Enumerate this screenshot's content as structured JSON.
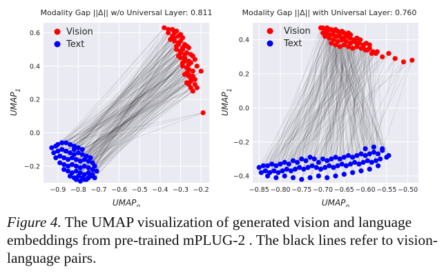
{
  "figure": {
    "panels": [
      {
        "title": "Modality Gap ||Δ|| w/o Universal Layer: 0.811",
        "x_tick_labels": [
          "−0.9",
          "−0.8",
          "−0.7",
          "−0.6",
          "−0.5",
          "−0.4",
          "−0.3",
          "−0.2"
        ],
        "y_tick_labels": [
          "−0.2",
          "0.0",
          "0.2",
          "0.4",
          "0.6"
        ],
        "legend": [
          "Vision",
          "Text"
        ]
      },
      {
        "title": "Modality Gap ||Δ|| with Universal Layer: 0.760",
        "x_tick_labels": [
          "−0.85",
          "−0.80",
          "−0.75",
          "−0.70",
          "−0.65",
          "−0.60",
          "−0.55",
          "−0.50"
        ],
        "y_tick_labels": [
          "−0.4",
          "−0.2",
          "0.0",
          "0.2",
          "0.4"
        ],
        "legend": [
          "Vision",
          "Text"
        ]
      }
    ],
    "colors": {
      "vision": "#ff0000",
      "text": "#0000ff",
      "pair_line": "#000000",
      "plot_bg": "#eaeaf2"
    }
  },
  "caption": {
    "label": "Figure 4.",
    "text": "The UMAP visualization of generated vision and language embeddings from pre-trained mPLUG-2 . The black lines refer to vision-language pairs."
  },
  "chart_data": [
    {
      "type": "scatter",
      "title": "Modality Gap ||Δ|| w/o Universal Layer: 0.811",
      "xlabel": "UMAP_0",
      "ylabel": "UMAP_1",
      "xlim": [
        -0.97,
        -0.16
      ],
      "ylim": [
        -0.3,
        0.66
      ],
      "xticks": [
        -0.9,
        -0.8,
        -0.7,
        -0.6,
        -0.5,
        -0.4,
        -0.3,
        -0.2
      ],
      "yticks": [
        -0.2,
        0.0,
        0.2,
        0.4,
        0.6
      ],
      "grid": true,
      "legend_position": "top-left",
      "series": [
        {
          "name": "Vision",
          "x": [
            -0.38,
            -0.36,
            -0.34,
            -0.33,
            -0.32,
            -0.31,
            -0.3,
            -0.29,
            -0.35,
            -0.33,
            -0.31,
            -0.3,
            -0.28,
            -0.27,
            -0.26,
            -0.32,
            -0.3,
            -0.29,
            -0.27,
            -0.25,
            -0.24,
            -0.3,
            -0.28,
            -0.26,
            -0.25,
            -0.23,
            -0.29,
            -0.27,
            -0.26,
            -0.24,
            -0.22,
            -0.28,
            -0.26,
            -0.25,
            -0.23,
            -0.27,
            -0.26,
            -0.25,
            -0.24,
            -0.2,
            -0.34,
            -0.32,
            -0.28,
            -0.26,
            -0.29,
            -0.27,
            -0.25,
            -0.23,
            -0.3,
            -0.28,
            -0.26,
            -0.31,
            -0.29,
            -0.36,
            -0.33,
            -0.31,
            -0.28,
            -0.26,
            -0.24,
            -0.22,
            -0.19
          ],
          "y": [
            0.63,
            0.62,
            0.62,
            0.6,
            0.61,
            0.58,
            0.59,
            0.57,
            0.56,
            0.55,
            0.54,
            0.55,
            0.53,
            0.52,
            0.51,
            0.5,
            0.49,
            0.5,
            0.48,
            0.47,
            0.46,
            0.45,
            0.44,
            0.43,
            0.42,
            0.44,
            0.4,
            0.39,
            0.38,
            0.37,
            0.4,
            0.35,
            0.34,
            0.33,
            0.32,
            0.3,
            0.29,
            0.27,
            0.25,
            0.37,
            0.58,
            0.52,
            0.47,
            0.41,
            0.42,
            0.36,
            0.31,
            0.29,
            0.48,
            0.45,
            0.38,
            0.53,
            0.51,
            0.6,
            0.57,
            0.46,
            0.43,
            0.35,
            0.34,
            0.27,
            0.12
          ]
        },
        {
          "name": "Text",
          "x": [
            -0.93,
            -0.91,
            -0.9,
            -0.88,
            -0.86,
            -0.84,
            -0.82,
            -0.8,
            -0.78,
            -0.92,
            -0.9,
            -0.88,
            -0.86,
            -0.84,
            -0.82,
            -0.8,
            -0.78,
            -0.76,
            -0.74,
            -0.91,
            -0.89,
            -0.87,
            -0.85,
            -0.83,
            -0.81,
            -0.79,
            -0.77,
            -0.75,
            -0.73,
            -0.72,
            -0.89,
            -0.87,
            -0.85,
            -0.83,
            -0.81,
            -0.79,
            -0.77,
            -0.75,
            -0.73,
            -0.71,
            -0.87,
            -0.85,
            -0.83,
            -0.81,
            -0.79,
            -0.77,
            -0.75,
            -0.73,
            -0.84,
            -0.82,
            -0.8,
            -0.78,
            -0.76,
            -0.74,
            -0.72,
            -0.81,
            -0.79,
            -0.77,
            -0.75,
            -0.82
          ],
          "y": [
            -0.09,
            -0.08,
            -0.07,
            -0.06,
            -0.06,
            -0.07,
            -0.08,
            -0.09,
            -0.1,
            -0.12,
            -0.11,
            -0.1,
            -0.11,
            -0.12,
            -0.13,
            -0.12,
            -0.13,
            -0.14,
            -0.15,
            -0.15,
            -0.14,
            -0.15,
            -0.16,
            -0.15,
            -0.16,
            -0.17,
            -0.16,
            -0.17,
            -0.18,
            -0.2,
            -0.18,
            -0.19,
            -0.2,
            -0.19,
            -0.2,
            -0.21,
            -0.2,
            -0.21,
            -0.22,
            -0.23,
            -0.22,
            -0.23,
            -0.24,
            -0.23,
            -0.24,
            -0.25,
            -0.24,
            -0.25,
            -0.26,
            -0.27,
            -0.26,
            -0.27,
            -0.28,
            -0.26,
            -0.27,
            -0.28,
            -0.29,
            -0.28,
            -0.27,
            -0.1
          ]
        }
      ]
    },
    {
      "type": "scatter",
      "title": "Modality Gap ||Δ|| with Universal Layer: 0.760",
      "xlabel": "UMAP_0",
      "ylabel": "UMAP_1",
      "xlim": [
        -0.865,
        -0.475
      ],
      "ylim": [
        -0.44,
        0.5
      ],
      "xticks": [
        -0.85,
        -0.8,
        -0.75,
        -0.7,
        -0.65,
        -0.6,
        -0.55,
        -0.5
      ],
      "yticks": [
        -0.4,
        -0.2,
        0.0,
        0.2,
        0.4
      ],
      "grid": true,
      "legend_position": "top-left",
      "series": [
        {
          "name": "Vision",
          "x": [
            -0.705,
            -0.7,
            -0.695,
            -0.69,
            -0.685,
            -0.68,
            -0.675,
            -0.67,
            -0.665,
            -0.66,
            -0.655,
            -0.65,
            -0.645,
            -0.64,
            -0.635,
            -0.7,
            -0.692,
            -0.684,
            -0.676,
            -0.668,
            -0.66,
            -0.652,
            -0.644,
            -0.636,
            -0.628,
            -0.62,
            -0.612,
            -0.695,
            -0.685,
            -0.675,
            -0.665,
            -0.655,
            -0.645,
            -0.635,
            -0.625,
            -0.615,
            -0.605,
            -0.598,
            -0.59,
            -0.68,
            -0.67,
            -0.66,
            -0.65,
            -0.64,
            -0.63,
            -0.62,
            -0.61,
            -0.6,
            -0.59,
            -0.582,
            -0.575,
            -0.62,
            -0.605,
            -0.595,
            -0.585,
            -0.572,
            -0.56,
            -0.545,
            -0.53,
            -0.51,
            -0.49
          ],
          "y": [
            0.47,
            0.47,
            0.46,
            0.47,
            0.46,
            0.46,
            0.45,
            0.46,
            0.45,
            0.44,
            0.45,
            0.44,
            0.43,
            0.44,
            0.43,
            0.44,
            0.44,
            0.43,
            0.43,
            0.42,
            0.42,
            0.41,
            0.42,
            0.41,
            0.4,
            0.41,
            0.4,
            0.42,
            0.41,
            0.4,
            0.39,
            0.4,
            0.39,
            0.38,
            0.39,
            0.38,
            0.37,
            0.38,
            0.37,
            0.38,
            0.37,
            0.36,
            0.37,
            0.36,
            0.35,
            0.36,
            0.35,
            0.34,
            0.35,
            0.33,
            0.32,
            0.38,
            0.36,
            0.34,
            0.32,
            0.33,
            0.3,
            0.32,
            0.29,
            0.27,
            0.28
          ]
        },
        {
          "name": "Text",
          "x": [
            -0.85,
            -0.84,
            -0.83,
            -0.82,
            -0.81,
            -0.8,
            -0.79,
            -0.78,
            -0.77,
            -0.76,
            -0.75,
            -0.74,
            -0.73,
            -0.72,
            -0.71,
            -0.7,
            -0.69,
            -0.68,
            -0.67,
            -0.66,
            -0.65,
            -0.64,
            -0.63,
            -0.62,
            -0.61,
            -0.6,
            -0.59,
            -0.58,
            -0.57,
            -0.56,
            -0.845,
            -0.835,
            -0.825,
            -0.815,
            -0.805,
            -0.795,
            -0.785,
            -0.775,
            -0.765,
            -0.755,
            -0.745,
            -0.735,
            -0.725,
            -0.715,
            -0.705,
            -0.695,
            -0.685,
            -0.675,
            -0.665,
            -0.655,
            -0.645,
            -0.635,
            -0.625,
            -0.615,
            -0.605,
            -0.595,
            -0.585,
            -0.575,
            -0.565,
            -0.55,
            -0.83,
            -0.81,
            -0.79,
            -0.77,
            -0.75,
            -0.73,
            -0.71,
            -0.69,
            -0.67,
            -0.65,
            -0.63,
            -0.61,
            -0.59,
            -0.57,
            -0.6,
            -0.58,
            -0.56,
            -0.545
          ],
          "y": [
            -0.35,
            -0.34,
            -0.34,
            -0.33,
            -0.34,
            -0.33,
            -0.32,
            -0.33,
            -0.31,
            -0.32,
            -0.3,
            -0.31,
            -0.29,
            -0.3,
            -0.32,
            -0.3,
            -0.31,
            -0.3,
            -0.29,
            -0.3,
            -0.29,
            -0.28,
            -0.29,
            -0.28,
            -0.27,
            -0.28,
            -0.27,
            -0.26,
            -0.27,
            -0.25,
            -0.38,
            -0.37,
            -0.38,
            -0.37,
            -0.38,
            -0.37,
            -0.36,
            -0.37,
            -0.36,
            -0.35,
            -0.36,
            -0.35,
            -0.34,
            -0.35,
            -0.36,
            -0.35,
            -0.34,
            -0.35,
            -0.34,
            -0.33,
            -0.34,
            -0.33,
            -0.32,
            -0.33,
            -0.32,
            -0.31,
            -0.32,
            -0.31,
            -0.3,
            -0.29,
            -0.4,
            -0.41,
            -0.4,
            -0.41,
            -0.42,
            -0.41,
            -0.4,
            -0.41,
            -0.4,
            -0.39,
            -0.38,
            -0.37,
            -0.36,
            -0.34,
            -0.24,
            -0.23,
            -0.24,
            -0.28
          ]
        }
      ]
    }
  ]
}
